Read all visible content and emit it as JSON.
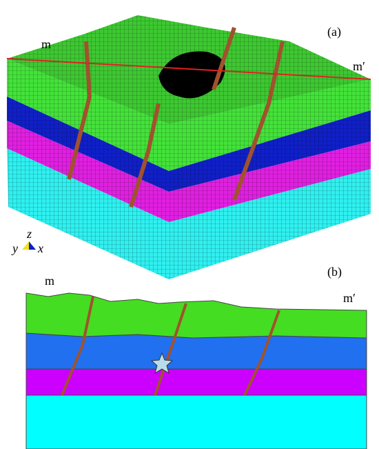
{
  "panel_a": {
    "label": "(a)",
    "left_marker": "m",
    "right_marker": "m′",
    "axis_z": "z",
    "axis_y": "y",
    "axis_x": "x"
  },
  "panel_b": {
    "label": "(b)",
    "left_marker": "m",
    "right_marker": "m′"
  }
}
